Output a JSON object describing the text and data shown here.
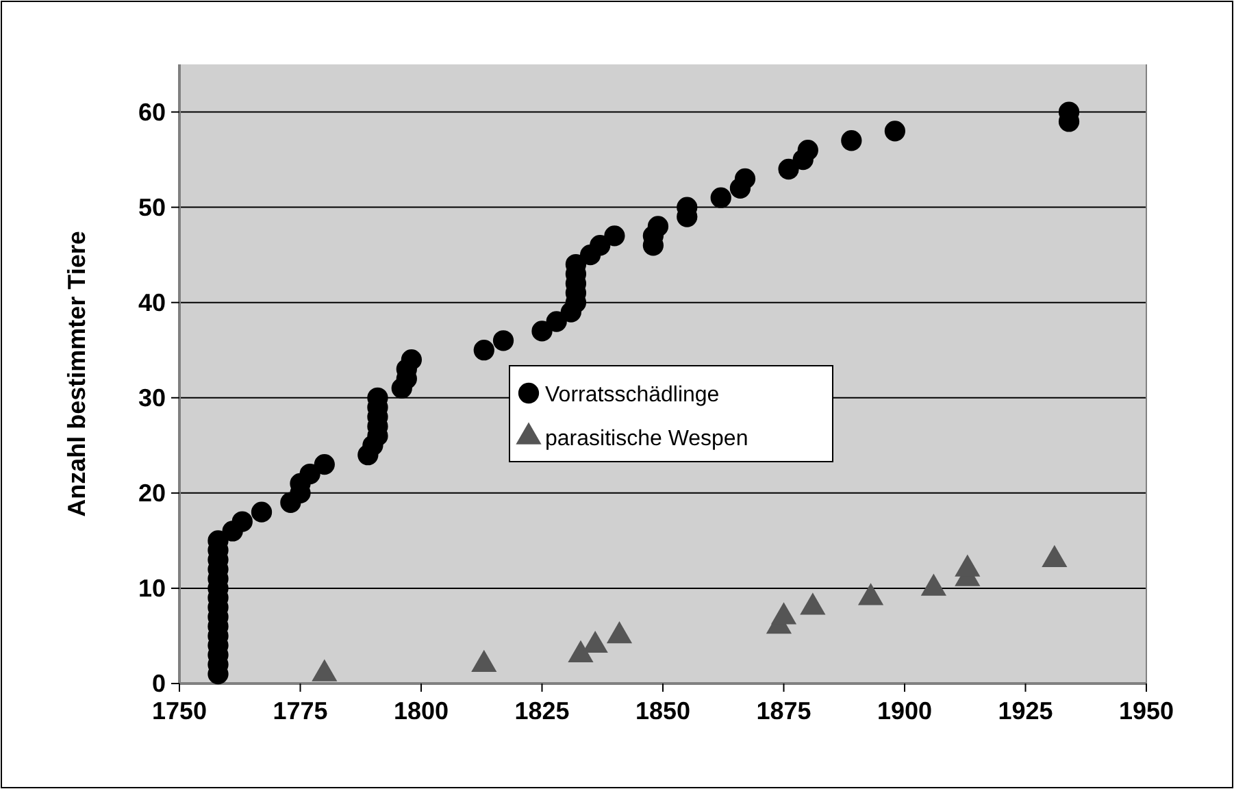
{
  "chart_data": {
    "type": "scatter",
    "ylabel": "Anzahl bestimmter Tiere",
    "xlim": [
      1750,
      1950
    ],
    "xticks": [
      1750,
      1775,
      1800,
      1825,
      1850,
      1875,
      1900,
      1925,
      1950
    ],
    "ylim": [
      0,
      65
    ],
    "yticks": [
      0,
      10,
      20,
      30,
      40,
      50,
      60
    ],
    "grid": "y",
    "legend": "center",
    "series": [
      {
        "name": "Vorratsschädlinge",
        "color": "#000000",
        "marker": "circle",
        "x": [
          1758,
          1758,
          1758,
          1758,
          1758,
          1758,
          1758,
          1758,
          1758,
          1758,
          1758,
          1758,
          1758,
          1758,
          1758,
          1761,
          1763,
          1767,
          1773,
          1775,
          1775,
          1777,
          1780,
          1789,
          1790,
          1791,
          1791,
          1791,
          1791,
          1791,
          1796,
          1797,
          1797,
          1798,
          1813,
          1817,
          1825,
          1828,
          1831,
          1832,
          1832,
          1832,
          1832,
          1832,
          1835,
          1837,
          1840,
          1848,
          1848,
          1849,
          1855,
          1855,
          1862,
          1866,
          1867,
          1876,
          1879,
          1880,
          1889,
          1898,
          1934,
          1934
        ],
        "values": [
          1,
          2,
          3,
          4,
          5,
          6,
          7,
          8,
          9,
          10,
          11,
          12,
          13,
          14,
          15,
          16,
          17,
          18,
          19,
          20,
          21,
          22,
          23,
          24,
          25,
          26,
          27,
          28,
          29,
          30,
          31,
          32,
          33,
          34,
          35,
          36,
          37,
          38,
          39,
          40,
          41,
          42,
          43,
          44,
          45,
          46,
          47,
          46,
          47,
          48,
          49,
          50,
          51,
          52,
          53,
          54,
          55,
          56,
          57,
          58,
          59,
          60
        ]
      },
      {
        "name": "parasitische Wespen",
        "color": "#555555",
        "marker": "triangle",
        "x": [
          1780,
          1813,
          1833,
          1836,
          1841,
          1874,
          1875,
          1881,
          1893,
          1906,
          1913,
          1913,
          1931
        ],
        "values": [
          1,
          2,
          3,
          4,
          5,
          6,
          7,
          8,
          9,
          10,
          11,
          12,
          13
        ]
      }
    ]
  }
}
